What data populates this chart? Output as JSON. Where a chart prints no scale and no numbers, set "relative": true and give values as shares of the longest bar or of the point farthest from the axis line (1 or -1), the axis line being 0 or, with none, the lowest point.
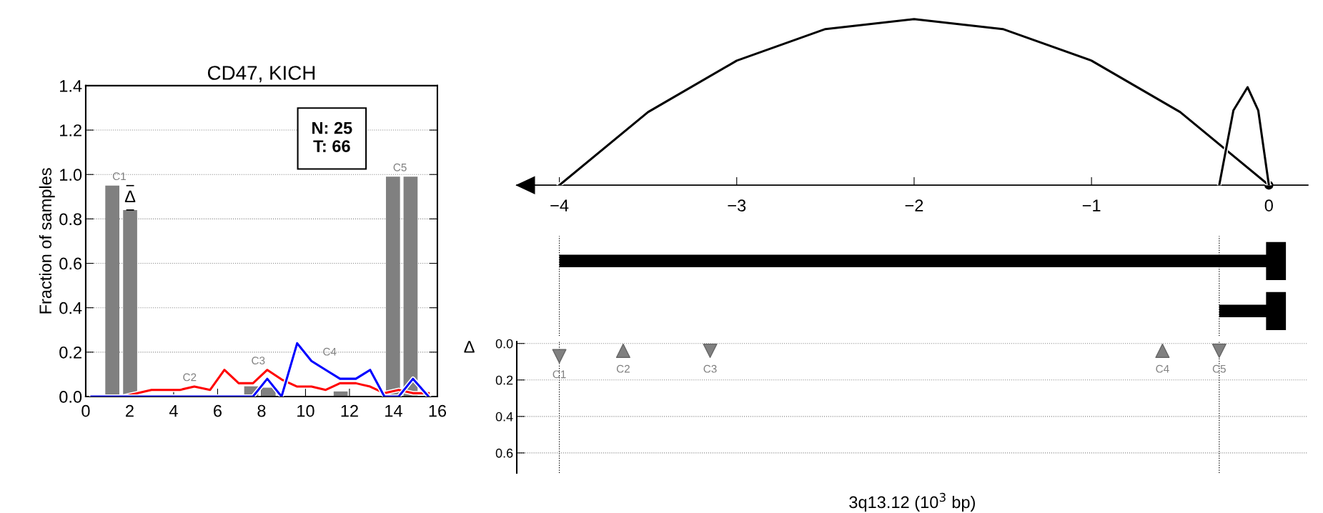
{
  "chart_data": [
    {
      "type": "bar",
      "title": "CD47, KICH",
      "ylabel": "Fraction of samples",
      "xlim": [
        0,
        16
      ],
      "xticks": [
        0,
        2,
        4,
        6,
        8,
        10,
        12,
        14,
        16
      ],
      "ylim": [
        0,
        1.4
      ],
      "yticks": [
        {
          "value": 0,
          "label": "0.0"
        },
        {
          "value": 0.2,
          "label": "0.2"
        },
        {
          "value": 0.4,
          "label": "0.4"
        },
        {
          "value": 0.6,
          "label": "0.6"
        },
        {
          "value": 0.8,
          "label": "0.8"
        },
        {
          "value": 1.0,
          "label": "1.0"
        },
        {
          "value": 1.2,
          "label": "1.2"
        },
        {
          "value": 1.4,
          "label": "1.4"
        }
      ],
      "grid": "y",
      "series": [
        {
          "type": "bar",
          "color": "#808080",
          "x": [
            1.21,
            2.02,
            4.41,
            5.21,
            7.53,
            8.32,
            10.78,
            11.6,
            13.98,
            14.78
          ],
          "values": [
            0.95,
            0.84,
            0,
            0,
            0.046,
            0.04,
            0,
            0.023,
            0.99,
            0.99
          ]
        },
        {
          "type": "line",
          "color": "#ff0000",
          "x": [
            0.26,
            1.69,
            2.99,
            4.29,
            4.94,
            5.66,
            6.31,
            6.96,
            7.61,
            8.26,
            8.91,
            9.62,
            10.27,
            10.92,
            11.57,
            12.29,
            12.94,
            13.59,
            14.24,
            14.89,
            15.6
          ],
          "values": [
            0,
            0,
            0.03,
            0.03,
            0.045,
            0.03,
            0.12,
            0.06,
            0.06,
            0.12,
            0.077,
            0.045,
            0.045,
            0.03,
            0.06,
            0.06,
            0.045,
            0.015,
            0.03,
            0.015,
            0.015
          ]
        },
        {
          "type": "line",
          "color": "#0000ff",
          "x": [
            0.26,
            1.69,
            2.99,
            4.29,
            4.94,
            5.66,
            6.31,
            6.96,
            7.61,
            8.26,
            8.91,
            9.62,
            10.27,
            10.92,
            11.57,
            12.29,
            12.94,
            13.59,
            14.24,
            14.89,
            15.6
          ],
          "values": [
            0,
            0,
            0,
            0,
            0,
            0,
            0,
            0,
            0,
            0.08,
            0,
            0.24,
            0.16,
            0.12,
            0.08,
            0.08,
            0.12,
            0,
            0,
            0.08,
            0
          ]
        }
      ],
      "annotations": [
        "N: 25\nT: 66",
        "Δ",
        "C1",
        "C2",
        "C3",
        "C4",
        "C5"
      ]
    },
    {
      "type": "line",
      "relative": true,
      "xlim": [
        -4.24,
        0.22
      ],
      "xticks": [
        {
          "value": -4,
          "label": "−4"
        },
        {
          "value": -3,
          "label": "−3"
        },
        {
          "value": -2,
          "label": "−2"
        },
        {
          "value": -1,
          "label": "−1"
        },
        {
          "value": 0,
          "label": "0"
        }
      ],
      "series": [
        {
          "color": "#000000",
          "x": [
            -4,
            -3.5,
            -3,
            -2.5,
            -2,
            -1.5,
            -1,
            -0.5,
            0
          ],
          "values": [
            0,
            0.44,
            0.75,
            0.94,
            1,
            0.94,
            0.75,
            0.44,
            0
          ]
        },
        {
          "color": "#000000",
          "x": [
            -0.28,
            -0.2,
            -0.12,
            -0.06,
            0
          ],
          "values": [
            0,
            0.45,
            0.59,
            0.45,
            0
          ]
        }
      ]
    },
    {
      "type": "bar",
      "orientation": "horizontal",
      "categories": [
        null,
        null
      ],
      "xlim": [
        -4.24,
        0.22
      ],
      "tick_labels": false,
      "base": [
        -4,
        -0.28
      ],
      "values": [
        4,
        0.28
      ],
      "color": "#000000",
      "ref_lines": [
        {
          "axis": "x",
          "value": -4,
          "line_style": "dotted"
        },
        {
          "axis": "x",
          "value": -0.28,
          "line_style": "dotted"
        }
      ]
    },
    {
      "type": "scatter",
      "xlabel": "3q13.12 (10$^{3}$ bp)",
      "ylabel": "Δ",
      "xlim": [
        -4.24,
        0.22
      ],
      "ylim": [
        0.71,
        -0.01
      ],
      "tick_labels": "y",
      "yticks": [
        {
          "value": 0,
          "label": "0.0"
        },
        {
          "value": 0.2,
          "label": "0.2"
        },
        {
          "value": 0.4,
          "label": "0.4"
        },
        {
          "value": 0.6,
          "label": "0.6"
        }
      ],
      "grid": "y",
      "series": [
        {
          "color": "#808080",
          "marker": "triangle",
          "x": [
            -3.64,
            -0.6
          ],
          "values": [
            0.04,
            0.04
          ],
          "value_labels": [
            "C2",
            "C4"
          ]
        },
        {
          "color": "#808080",
          "marker": "triangle-down",
          "x": [
            -4,
            -3.15,
            -0.28
          ],
          "values": [
            0.07,
            0.04,
            0.04
          ],
          "value_labels": [
            "C1",
            "C3",
            "C5"
          ]
        }
      ],
      "ref_lines": [
        {
          "axis": "x",
          "value": -4,
          "line_style": "dotted"
        },
        {
          "axis": "x",
          "value": -0.28,
          "line_style": "dotted"
        }
      ]
    }
  ]
}
